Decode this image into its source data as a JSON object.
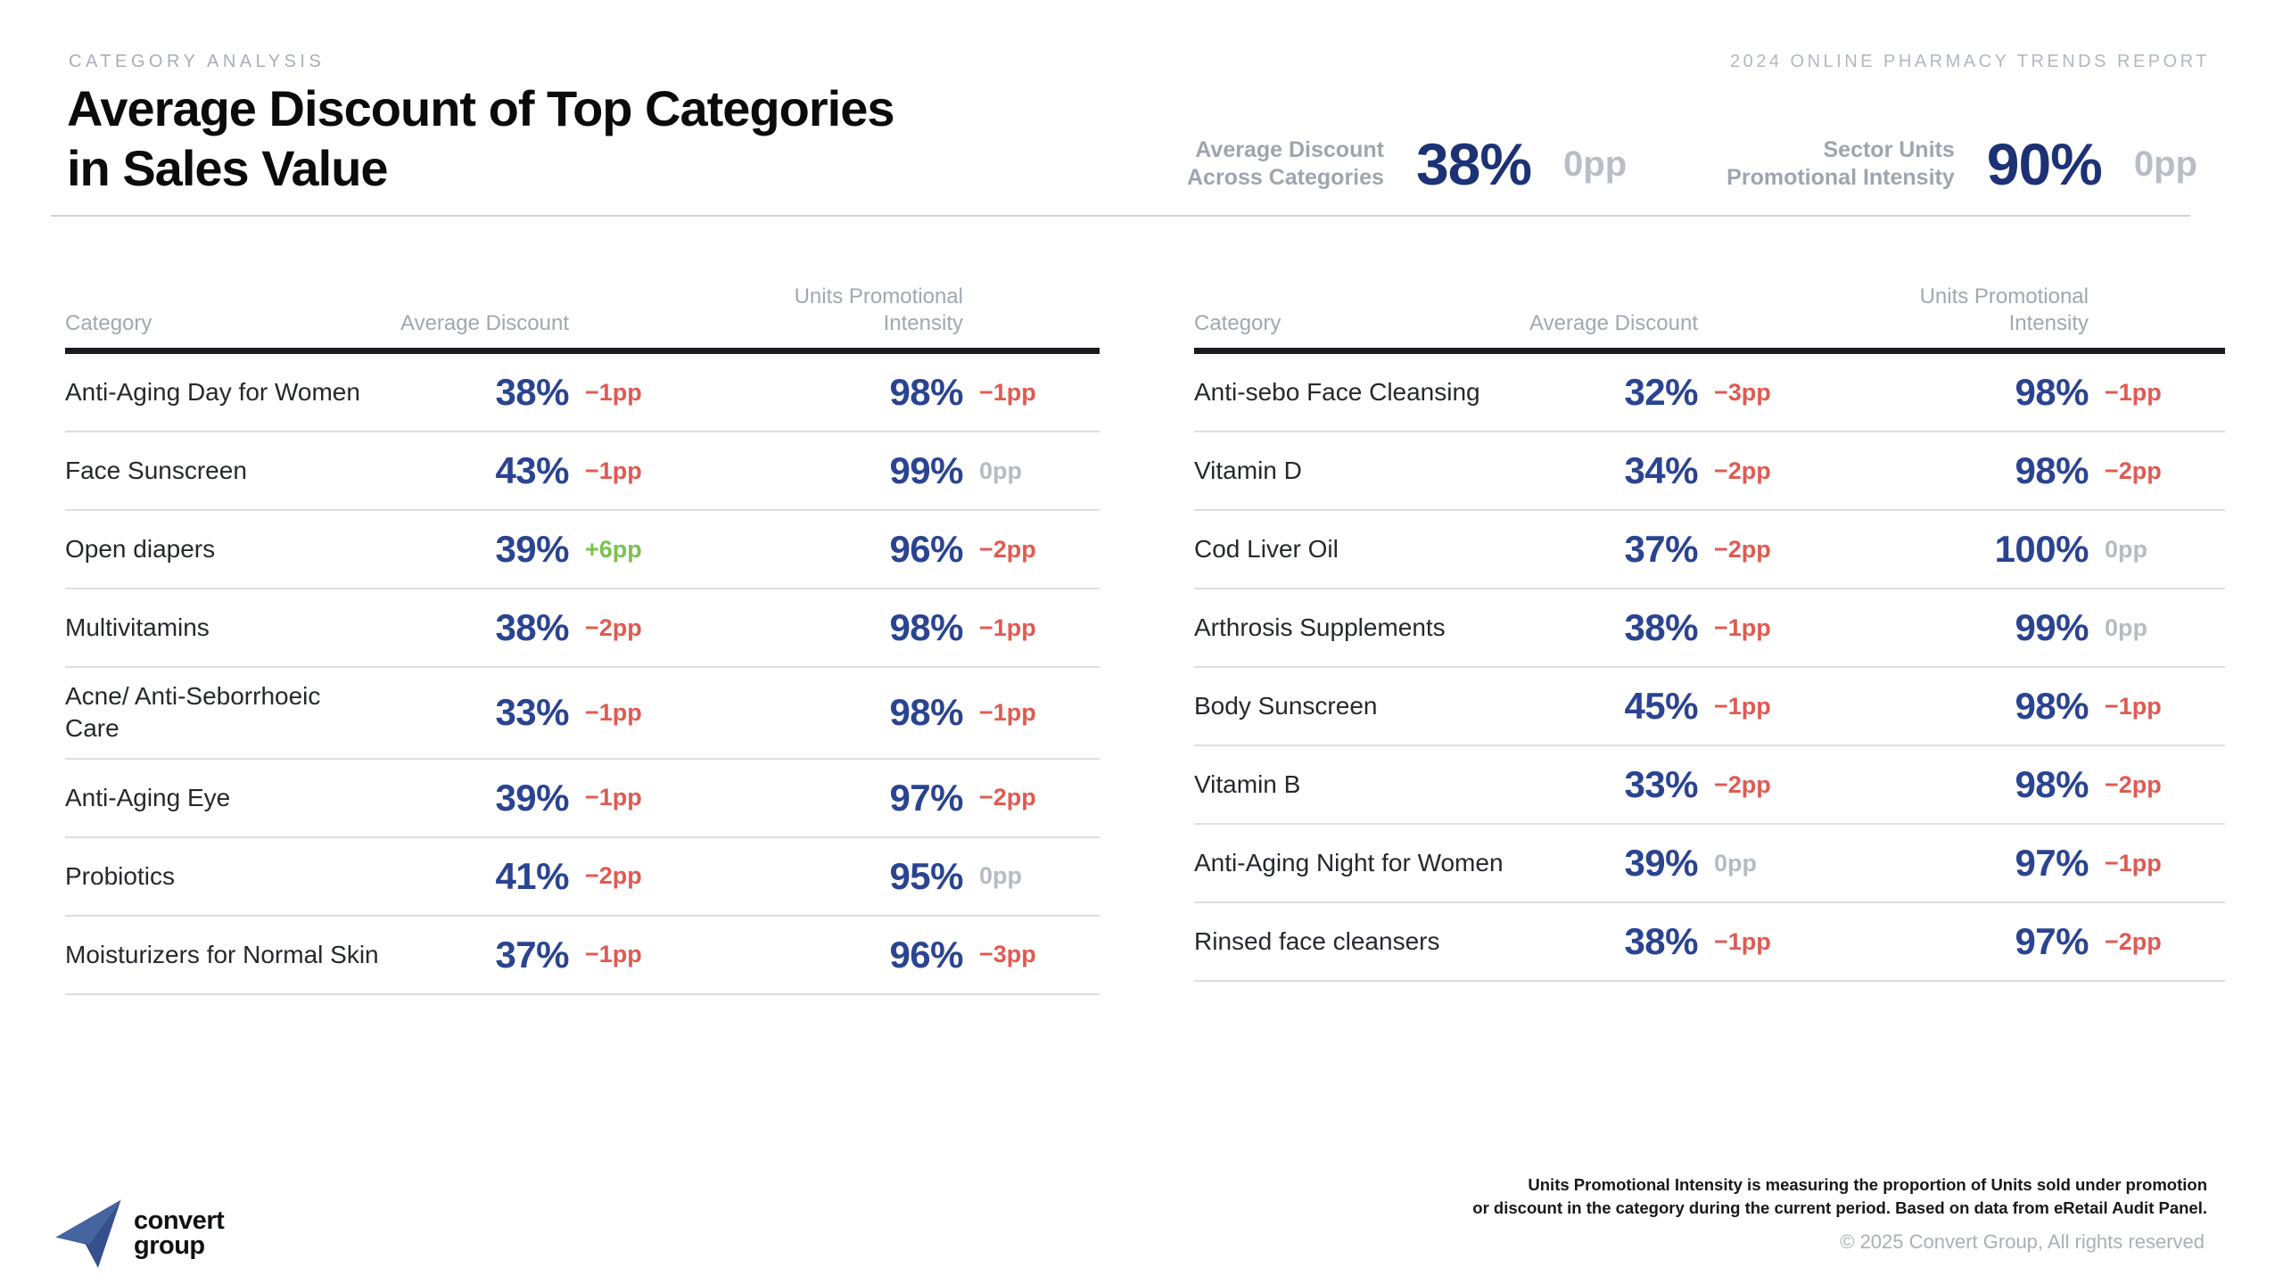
{
  "header": {
    "eyebrow": "CATEGORY ANALYSIS",
    "report_tag": "2024 ONLINE PHARMACY TRENDS REPORT",
    "title_line1": "Average Discount of Top Categories",
    "title_line2": "in Sales Value"
  },
  "kpis": [
    {
      "label_line1": "Average Discount",
      "label_line2": "Across Categories",
      "value": "38%",
      "change": "0pp"
    },
    {
      "label_line1": "Sector Units",
      "label_line2": "Promotional Intensity",
      "value": "90%",
      "change": "0pp"
    }
  ],
  "table_headers": {
    "category": "Category",
    "discount": "Average Discount",
    "intensity_line1": "Units Promotional",
    "intensity_line2": "Intensity"
  },
  "chart_data": [
    {
      "type": "table",
      "title": "Average Discount of Top Categories in Sales Value — left table",
      "columns": [
        "Category",
        "Average Discount",
        "Average Discount change (pp)",
        "Units Promotional Intensity",
        "Units Promotional Intensity change (pp)"
      ],
      "rows": [
        {
          "category": "Anti-Aging Day for Women",
          "discount": "38%",
          "discount_change": "−1pp",
          "intensity": "98%",
          "intensity_change": "−1pp"
        },
        {
          "category": "Face Sunscreen",
          "discount": "43%",
          "discount_change": "−1pp",
          "intensity": "99%",
          "intensity_change": "0pp"
        },
        {
          "category": "Open diapers",
          "discount": "39%",
          "discount_change": "+6pp",
          "intensity": "96%",
          "intensity_change": "−2pp"
        },
        {
          "category": "Multivitamins",
          "discount": "38%",
          "discount_change": "−2pp",
          "intensity": "98%",
          "intensity_change": "−1pp"
        },
        {
          "category": "Acne/ Anti-Seborrhoeic Care",
          "discount": "33%",
          "discount_change": "−1pp",
          "intensity": "98%",
          "intensity_change": "−1pp"
        },
        {
          "category": "Anti-Aging Eye",
          "discount": "39%",
          "discount_change": "−1pp",
          "intensity": "97%",
          "intensity_change": "−2pp"
        },
        {
          "category": "Probiotics",
          "discount": "41%",
          "discount_change": "−2pp",
          "intensity": "95%",
          "intensity_change": "0pp"
        },
        {
          "category": "Moisturizers for Normal Skin",
          "discount": "37%",
          "discount_change": "−1pp",
          "intensity": "96%",
          "intensity_change": "−3pp"
        }
      ]
    },
    {
      "type": "table",
      "title": "Average Discount of Top Categories in Sales Value — right table",
      "columns": [
        "Category",
        "Average Discount",
        "Average Discount change (pp)",
        "Units Promotional Intensity",
        "Units Promotional Intensity change (pp)"
      ],
      "rows": [
        {
          "category": "Anti-sebo Face Cleansing",
          "discount": "32%",
          "discount_change": "−3pp",
          "intensity": "98%",
          "intensity_change": "−1pp"
        },
        {
          "category": "Vitamin D",
          "discount": "34%",
          "discount_change": "−2pp",
          "intensity": "98%",
          "intensity_change": "−2pp"
        },
        {
          "category": "Cod Liver Oil",
          "discount": "37%",
          "discount_change": "−2pp",
          "intensity": "100%",
          "intensity_change": "0pp"
        },
        {
          "category": "Arthrosis Supplements",
          "discount": "38%",
          "discount_change": "−1pp",
          "intensity": "99%",
          "intensity_change": "0pp"
        },
        {
          "category": "Body Sunscreen",
          "discount": "45%",
          "discount_change": "−1pp",
          "intensity": "98%",
          "intensity_change": "−1pp"
        },
        {
          "category": "Vitamin B",
          "discount": "33%",
          "discount_change": "−2pp",
          "intensity": "98%",
          "intensity_change": "−2pp"
        },
        {
          "category": "Anti-Aging Night for Women",
          "discount": "39%",
          "discount_change": "0pp",
          "intensity": "97%",
          "intensity_change": "−1pp"
        },
        {
          "category": "Rinsed face cleansers",
          "discount": "38%",
          "discount_change": "−1pp",
          "intensity": "97%",
          "intensity_change": "−2pp"
        }
      ]
    }
  ],
  "footer": {
    "footnote_line1": "Units Promotional Intensity is measuring the proportion of Units sold under promotion",
    "footnote_line2": "or discount in the category during the current period. Based on data from eRetail Audit Panel.",
    "copyright": "© 2025 Convert Group, All rights reserved",
    "logo_line1": "convert",
    "logo_line2": "group"
  },
  "colors": {
    "value_navy": "#2b4491",
    "kpi_navy": "#1d3275",
    "negative_red": "#e05a52",
    "positive_green": "#7cc24e",
    "neutral_gray": "#b7bbc3",
    "label_gray": "#a2a7b0",
    "logo_blue": "#46649f"
  }
}
